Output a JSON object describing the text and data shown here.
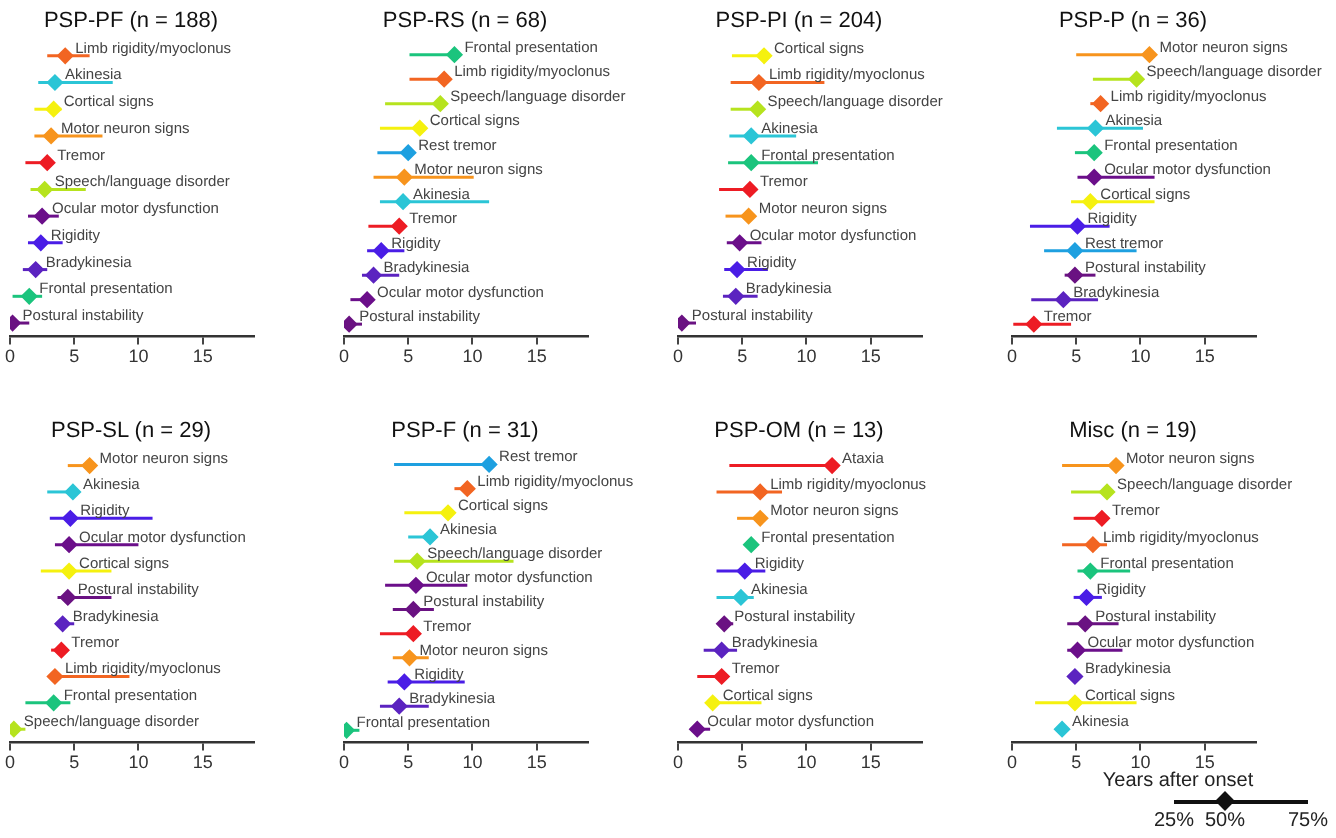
{
  "chart_data": [
    {
      "type": "scatter",
      "title": "PSP-PF (n = 188)",
      "orientation": "horizontal",
      "marker": "diamond",
      "tick_labels": "x",
      "xlim": [
        0,
        19
      ],
      "xticks": [
        0,
        5,
        10,
        15
      ],
      "categories": [
        "Limb rigidity/myoclonus",
        "Akinesia",
        "Cortical signs",
        "Motor neuron signs",
        "Tremor",
        "Speech/language disorder",
        "Ocular motor dysfunction",
        "Rigidity",
        "Bradykinesia",
        "Frontal presentation",
        "Postural instability"
      ],
      "values": [
        4.3,
        3.5,
        3.4,
        3.2,
        2.9,
        2.7,
        2.5,
        2.4,
        2.0,
        1.5,
        0.2
      ],
      "errors": [
        [
          2.9,
          6.2
        ],
        [
          2.2,
          8.0
        ],
        [
          1.9,
          4.0
        ],
        [
          1.9,
          7.2
        ],
        [
          1.2,
          3.2
        ],
        [
          1.6,
          5.9
        ],
        [
          1.4,
          3.8
        ],
        [
          1.4,
          4.1
        ],
        [
          1.0,
          2.9
        ],
        [
          0.2,
          2.5
        ],
        [
          0,
          1.5
        ]
      ],
      "colors": [
        "#f26522",
        "#2bc5d6",
        "#f5f10f",
        "#f7941d",
        "#ed1c24",
        "#b6e31e",
        "#6b0f8a",
        "#4a1de6",
        "#5b23c0",
        "#1bc47d",
        "#6a1282"
      ]
    },
    {
      "type": "scatter",
      "title": "PSP-RS (n = 68)",
      "orientation": "horizontal",
      "marker": "diamond",
      "tick_labels": "x",
      "xlim": [
        0,
        19
      ],
      "xticks": [
        0,
        5,
        10,
        15
      ],
      "categories": [
        "Frontal presentation",
        "Limb rigidity/myoclonus",
        "Speech/language disorder",
        "Cortical signs",
        "Rest tremor",
        "Motor neuron signs",
        "Akinesia",
        "Tremor",
        "Rigidity",
        "Bradykinesia",
        "Ocular motor dysfunction",
        "Postural instability"
      ],
      "values": [
        8.6,
        7.8,
        7.5,
        5.9,
        5.0,
        4.7,
        4.6,
        4.3,
        2.9,
        2.3,
        1.8,
        0.4
      ],
      "errors": [
        [
          5.1,
          8.7
        ],
        [
          5.1,
          8.0
        ],
        [
          3.2,
          8.0
        ],
        [
          2.8,
          6.2
        ],
        [
          2.6,
          5.4
        ],
        [
          2.3,
          10.1
        ],
        [
          2.8,
          11.3
        ],
        [
          1.9,
          4.5
        ],
        [
          1.8,
          4.7
        ],
        [
          1.4,
          4.3
        ],
        [
          0.5,
          2.1
        ],
        [
          0,
          1.4
        ]
      ],
      "colors": [
        "#1bc47d",
        "#f26522",
        "#b6e31e",
        "#f5f10f",
        "#1ea0e0",
        "#f7941d",
        "#2bc5d6",
        "#ed1c24",
        "#4a1de6",
        "#5b23c0",
        "#6b0f8a",
        "#6a1282"
      ]
    },
    {
      "type": "scatter",
      "title": "PSP-PI (n = 204)",
      "orientation": "horizontal",
      "marker": "diamond",
      "tick_labels": "x",
      "xlim": [
        0,
        19
      ],
      "xticks": [
        0,
        5,
        10,
        15
      ],
      "categories": [
        "Cortical signs",
        "Limb rigidity/myoclonus",
        "Speech/language disorder",
        "Akinesia",
        "Frontal presentation",
        "Tremor",
        "Motor neuron signs",
        "Ocular motor dysfunction",
        "Rigidity",
        "Bradykinesia",
        "Postural instability"
      ],
      "values": [
        6.7,
        6.3,
        6.2,
        5.7,
        5.7,
        5.6,
        5.5,
        4.8,
        4.6,
        4.5,
        0.3
      ],
      "errors": [
        [
          4.2,
          7.0
        ],
        [
          4.1,
          11.4
        ],
        [
          4.1,
          6.4
        ],
        [
          4.0,
          9.2
        ],
        [
          3.9,
          10.9
        ],
        [
          3.2,
          5.8
        ],
        [
          3.7,
          5.9
        ],
        [
          3.8,
          6.5
        ],
        [
          3.6,
          7.0
        ],
        [
          3.5,
          6.2
        ],
        [
          0,
          1.4
        ]
      ],
      "colors": [
        "#f5f10f",
        "#f26522",
        "#b6e31e",
        "#2bc5d6",
        "#1bc47d",
        "#ed1c24",
        "#f7941d",
        "#6b0f8a",
        "#4a1de6",
        "#5b23c0",
        "#6a1282"
      ]
    },
    {
      "type": "scatter",
      "title": "PSP-P (n = 36)",
      "orientation": "horizontal",
      "marker": "diamond",
      "tick_labels": "x",
      "xlim": [
        0,
        19
      ],
      "xticks": [
        0,
        5,
        10,
        15
      ],
      "categories": [
        "Motor neuron signs",
        "Speech/language disorder",
        "Limb rigidity/myoclonus",
        "Akinesia",
        "Frontal presentation",
        "Ocular motor dysfunction",
        "Cortical signs",
        "Rigidity",
        "Rest tremor",
        "Postural instability",
        "Bradykinesia",
        "Tremor"
      ],
      "values": [
        10.7,
        9.7,
        6.9,
        6.5,
        6.4,
        6.4,
        6.1,
        5.1,
        4.9,
        4.9,
        4.0,
        1.7
      ],
      "errors": [
        [
          5.0,
          10.9
        ],
        [
          6.3,
          10.0
        ],
        [
          6.1,
          7.2
        ],
        [
          3.5,
          10.2
        ],
        [
          4.9,
          6.5
        ],
        [
          5.1,
          11.1
        ],
        [
          4.6,
          11.1
        ],
        [
          1.4,
          7.6
        ],
        [
          2.5,
          9.7
        ],
        [
          4.1,
          6.5
        ],
        [
          1.5,
          6.7
        ],
        [
          0.1,
          4.6
        ]
      ],
      "colors": [
        "#f7941d",
        "#b6e31e",
        "#f26522",
        "#2bc5d6",
        "#1bc47d",
        "#6b0f8a",
        "#f5f10f",
        "#4a1de6",
        "#1ea0e0",
        "#6a1282",
        "#5b23c0",
        "#ed1c24"
      ]
    },
    {
      "type": "scatter",
      "title": "PSP-SL (n = 29)",
      "orientation": "horizontal",
      "marker": "diamond",
      "tick_labels": "x",
      "xlim": [
        0,
        19
      ],
      "xticks": [
        0,
        5,
        10,
        15
      ],
      "categories": [
        "Motor neuron signs",
        "Akinesia",
        "Rigidity",
        "Ocular motor dysfunction",
        "Cortical signs",
        "Postural instability",
        "Bradykinesia",
        "Tremor",
        "Limb rigidity/myoclonus",
        "Frontal presentation",
        "Speech/language disorder"
      ],
      "values": [
        6.2,
        4.9,
        4.7,
        4.6,
        4.6,
        4.5,
        4.1,
        4.0,
        3.5,
        3.4,
        0.3
      ],
      "errors": [
        [
          4.5,
          6.4
        ],
        [
          2.9,
          5.1
        ],
        [
          3.1,
          11.1
        ],
        [
          3.5,
          10.0
        ],
        [
          2.4,
          7.9
        ],
        [
          3.7,
          7.9
        ],
        [
          3.6,
          5.0
        ],
        [
          3.2,
          4.4
        ],
        [
          3.2,
          9.3
        ],
        [
          1.2,
          4.7
        ],
        [
          0,
          1.2
        ]
      ],
      "colors": [
        "#f7941d",
        "#2bc5d6",
        "#4a1de6",
        "#6b0f8a",
        "#f5f10f",
        "#6a1282",
        "#5b23c0",
        "#ed1c24",
        "#f26522",
        "#1bc47d",
        "#b6e31e"
      ]
    },
    {
      "type": "scatter",
      "title": "PSP-F (n = 31)",
      "orientation": "horizontal",
      "marker": "diamond",
      "tick_labels": "x",
      "xlim": [
        0,
        19
      ],
      "xticks": [
        0,
        5,
        10,
        15
      ],
      "categories": [
        "Rest tremor",
        "Limb rigidity/myoclonus",
        "Cortical signs",
        "Akinesia",
        "Speech/language disorder",
        "Ocular motor dysfunction",
        "Postural instability",
        "Tremor",
        "Motor neuron signs",
        "Rigidity",
        "Bradykinesia",
        "Frontal presentation"
      ],
      "values": [
        11.3,
        9.6,
        8.1,
        6.7,
        5.7,
        5.6,
        5.4,
        5.4,
        5.1,
        4.7,
        4.3,
        0.2
      ],
      "errors": [
        [
          3.9,
          11.5
        ],
        [
          8.6,
          10.0
        ],
        [
          4.7,
          8.4
        ],
        [
          5.0,
          6.9
        ],
        [
          3.9,
          13.2
        ],
        [
          3.2,
          9.6
        ],
        [
          3.8,
          7.0
        ],
        [
          2.8,
          5.8
        ],
        [
          3.8,
          6.6
        ],
        [
          3.4,
          9.4
        ],
        [
          2.8,
          6.6
        ],
        [
          0,
          1.2
        ]
      ],
      "colors": [
        "#1ea0e0",
        "#f26522",
        "#f5f10f",
        "#2bc5d6",
        "#b6e31e",
        "#6b0f8a",
        "#6a1282",
        "#ed1c24",
        "#f7941d",
        "#4a1de6",
        "#5b23c0",
        "#1bc47d"
      ]
    },
    {
      "type": "scatter",
      "title": "PSP-OM (n = 13)",
      "orientation": "horizontal",
      "marker": "diamond",
      "tick_labels": "x",
      "xlim": [
        0,
        19
      ],
      "xticks": [
        0,
        5,
        10,
        15
      ],
      "categories": [
        "Ataxia",
        "Limb rigidity/myoclonus",
        "Motor neuron signs",
        "Frontal presentation",
        "Rigidity",
        "Akinesia",
        "Postural instability",
        "Bradykinesia",
        "Tremor",
        "Cortical signs",
        "Ocular motor dysfunction"
      ],
      "values": [
        12.0,
        6.4,
        6.4,
        5.7,
        5.2,
        4.9,
        3.6,
        3.4,
        3.4,
        2.7,
        1.5
      ],
      "errors": [
        [
          4.0,
          12.2
        ],
        [
          3.0,
          8.1
        ],
        [
          4.6,
          6.7
        ],
        [
          5.4,
          5.9
        ],
        [
          3.0,
          6.8
        ],
        [
          3.0,
          5.9
        ],
        [
          3.2,
          4.3
        ],
        [
          2.0,
          4.6
        ],
        [
          1.5,
          3.6
        ],
        [
          2.4,
          6.5
        ],
        [
          1.1,
          2.5
        ]
      ],
      "colors": [
        "#ed1c24",
        "#f26522",
        "#f7941d",
        "#1bc47d",
        "#4a1de6",
        "#2bc5d6",
        "#6a1282",
        "#5b23c0",
        "#ed1c24",
        "#f5f10f",
        "#6b0f8a"
      ]
    },
    {
      "type": "scatter",
      "title": "Misc (n = 19)",
      "orientation": "horizontal",
      "marker": "diamond",
      "tick_labels": "x",
      "xlim": [
        0,
        19
      ],
      "xticks": [
        0,
        5,
        10,
        15
      ],
      "xlabel": "Years after onset",
      "annotations": [
        "25%",
        "50%",
        "75%"
      ],
      "categories": [
        "Motor neuron signs",
        "Speech/language disorder",
        "Tremor",
        "Limb rigidity/myoclonus",
        "Frontal presentation",
        "Rigidity",
        "Postural instability",
        "Ocular motor dysfunction",
        "Bradykinesia",
        "Cortical signs",
        "Akinesia"
      ],
      "values": [
        8.1,
        7.4,
        7.0,
        6.3,
        6.1,
        5.8,
        5.7,
        5.1,
        4.9,
        4.9,
        3.9
      ],
      "errors": [
        [
          3.9,
          8.3
        ],
        [
          4.6,
          7.6
        ],
        [
          4.8,
          7.2
        ],
        [
          3.9,
          7.4
        ],
        [
          5.1,
          9.2
        ],
        [
          4.8,
          7.0
        ],
        [
          4.3,
          8.3
        ],
        [
          4.3,
          8.6
        ],
        [
          4.6,
          5.4
        ],
        [
          1.8,
          9.7
        ],
        [
          3.6,
          4.2
        ]
      ],
      "colors": [
        "#f7941d",
        "#b6e31e",
        "#ed1c24",
        "#f26522",
        "#1bc47d",
        "#4a1de6",
        "#6a1282",
        "#6b0f8a",
        "#5b23c0",
        "#f5f10f",
        "#2bc5d6"
      ]
    }
  ]
}
